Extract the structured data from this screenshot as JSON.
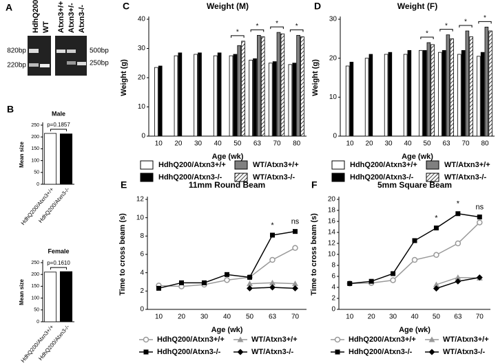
{
  "gel": {
    "panel": "A",
    "lanes_left": [
      "HdhQ200",
      "WT"
    ],
    "lanes_right": [
      "Atxn3+/+",
      "Atxn3+/-",
      "Atxn3-/-"
    ],
    "markers_left": [
      "820bp",
      "220bp"
    ],
    "markers_right": [
      "500bp",
      "250bp"
    ]
  },
  "chart_data": [
    {
      "type": "bar",
      "panel": "B",
      "title": "Male",
      "ylabel": "Mean size",
      "p_value": "p=0.1857",
      "categories": [
        "HdhQ200/Atxn3+/+",
        "HdhQ200/Atxn3-/-"
      ],
      "series": [
        {
          "name": "Mean size",
          "color": "#ffffff",
          "values": [
            215,
            213
          ]
        }
      ],
      "bar_colors": [
        "#ffffff",
        "#000000"
      ],
      "ylim": [
        0,
        250
      ],
      "yticks": [
        0,
        50,
        100,
        150,
        200,
        250
      ]
    },
    {
      "type": "bar",
      "title": "Female",
      "ylabel": "Mean size",
      "p_value": "p=0.1610",
      "categories": [
        "HdhQ200/Atxn3+/+",
        "HdhQ200/Atxn3-/-"
      ],
      "series": [
        {
          "name": "Mean size",
          "color": "#ffffff",
          "values": [
            210,
            212
          ]
        }
      ],
      "bar_colors": [
        "#ffffff",
        "#000000"
      ],
      "ylim": [
        0,
        250
      ],
      "yticks": [
        0,
        50,
        100,
        150,
        200,
        250
      ]
    },
    {
      "type": "bar",
      "panel": "C",
      "title": "Weight (M)",
      "ylabel": "Weight (g)",
      "xlabel": "Age (wk)",
      "categories": [
        10,
        20,
        30,
        40,
        50,
        63,
        70,
        80
      ],
      "series": [
        {
          "name": "HdhQ200/Atxn3+/+",
          "color": "#ffffff",
          "values": [
            23.5,
            27.5,
            28,
            27.5,
            27.5,
            26,
            25,
            24.5
          ]
        },
        {
          "name": "HdhQ200/Atxn3-/-",
          "color": "#000000",
          "values": [
            24,
            28.5,
            28.5,
            28.5,
            28,
            26.5,
            25.5,
            25
          ]
        },
        {
          "name": "WT/Atxn3+/+",
          "color": "#808080",
          "values": [
            null,
            null,
            null,
            null,
            31,
            34.5,
            35.5,
            34.5
          ]
        },
        {
          "name": "WT/Atxn3-/-",
          "color": "#ffffff",
          "pattern": "hatch",
          "values": [
            null,
            null,
            null,
            null,
            32.5,
            34,
            35,
            34
          ]
        }
      ],
      "annotations": [
        {
          "x": 50,
          "text": "*"
        },
        {
          "x": 63,
          "text": "*"
        },
        {
          "x": 70,
          "text": "*"
        },
        {
          "x": 80,
          "text": "*"
        }
      ],
      "ylim": [
        0,
        40
      ],
      "yticks": [
        0,
        10,
        20,
        30,
        40
      ]
    },
    {
      "type": "bar",
      "panel": "D",
      "title": "Weight (F)",
      "ylabel": "Weight (g)",
      "xlabel": "Age (wk)",
      "categories": [
        10,
        20,
        30,
        40,
        50,
        63,
        70,
        80
      ],
      "series": [
        {
          "name": "HdhQ200/Atxn3+/+",
          "color": "#ffffff",
          "values": [
            18,
            20,
            21,
            21,
            22,
            21.5,
            21,
            20.5
          ]
        },
        {
          "name": "HdhQ200/Atxn3-/-",
          "color": "#000000",
          "values": [
            19,
            21,
            21.5,
            22,
            22,
            22,
            22,
            21.5
          ]
        },
        {
          "name": "WT/Atxn3+/+",
          "color": "#808080",
          "values": [
            null,
            null,
            null,
            null,
            24,
            26,
            27,
            28
          ]
        },
        {
          "name": "WT/Atxn3-/-",
          "color": "#ffffff",
          "pattern": "hatch",
          "values": [
            null,
            null,
            null,
            null,
            23.5,
            25,
            25.5,
            27
          ]
        }
      ],
      "annotations": [
        {
          "x": 50,
          "text": "*"
        },
        {
          "x": 63,
          "text": "*"
        },
        {
          "x": 70,
          "text": "*"
        },
        {
          "x": 80,
          "text": "*"
        }
      ],
      "ylim": [
        0,
        30
      ],
      "yticks": [
        0,
        10,
        20,
        30
      ]
    },
    {
      "type": "line",
      "panel": "E",
      "title": "11mm Round Beam",
      "ylabel": "Time to cross beam (s)",
      "xlabel": "Age (wk)",
      "categories": [
        10,
        20,
        30,
        40,
        50,
        63,
        70
      ],
      "series": [
        {
          "name": "HdhQ200/Atxn3+/+",
          "color": "#999999",
          "marker": "circle",
          "values": [
            2.6,
            2.5,
            2.7,
            3.2,
            3.5,
            5.4,
            6.7
          ]
        },
        {
          "name": "HdhQ200/Atxn3-/-",
          "color": "#000000",
          "marker": "square",
          "values": [
            2.3,
            2.9,
            2.9,
            3.8,
            3.5,
            8.1,
            8.5
          ]
        },
        {
          "name": "WT/Atxn3+/+",
          "color": "#999999",
          "marker": "triangle",
          "values": [
            null,
            null,
            null,
            null,
            2.8,
            2.9,
            2.8
          ]
        },
        {
          "name": "WT/Atxn3-/-",
          "color": "#000000",
          "marker": "diamond",
          "values": [
            null,
            null,
            null,
            null,
            2.3,
            2.4,
            2.3
          ]
        }
      ],
      "annotations": [
        {
          "x": 63,
          "text": "*"
        },
        {
          "x": 70,
          "text": "ns"
        }
      ],
      "ylim": [
        0,
        12
      ],
      "yticks": [
        0,
        2,
        4,
        6,
        8,
        10,
        12
      ]
    },
    {
      "type": "line",
      "panel": "F",
      "title": "5mm Square Beam",
      "ylabel": "Time to cross beam (s)",
      "xlabel": "Age (wk)",
      "categories": [
        10,
        20,
        30,
        40,
        50,
        63,
        70
      ],
      "series": [
        {
          "name": "HdhQ200/Atxn3+/+",
          "color": "#999999",
          "marker": "circle",
          "values": [
            4.7,
            4.8,
            5.3,
            9,
            9.9,
            12,
            15.8
          ]
        },
        {
          "name": "HdhQ200/Atxn3-/-",
          "color": "#000000",
          "marker": "square",
          "values": [
            4.7,
            5.1,
            6.5,
            12.5,
            14.8,
            17.4,
            16.8
          ]
        },
        {
          "name": "WT/Atxn3+/+",
          "color": "#999999",
          "marker": "triangle",
          "values": [
            null,
            null,
            null,
            null,
            4.5,
            5.8,
            5.7
          ]
        },
        {
          "name": "WT/Atxn3-/-",
          "color": "#000000",
          "marker": "diamond",
          "values": [
            null,
            null,
            null,
            null,
            3.8,
            5.1,
            5.8
          ]
        }
      ],
      "annotations": [
        {
          "x": 50,
          "text": "*"
        },
        {
          "x": 63,
          "text": "*"
        },
        {
          "x": 70,
          "text": "ns"
        }
      ],
      "ylim": [
        0,
        20
      ],
      "yticks": [
        0,
        2,
        4,
        6,
        8,
        10,
        12,
        14,
        16,
        18,
        20
      ]
    }
  ]
}
